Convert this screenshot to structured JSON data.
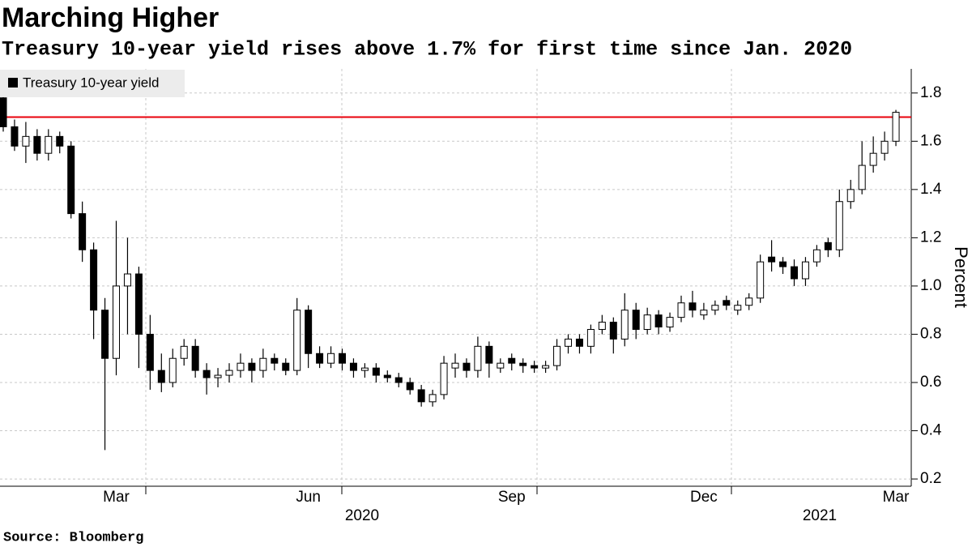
{
  "chart_data": {
    "type": "candlestick",
    "title": "Marching Higher",
    "subtitle": "Treasury 10-year yield rises above 1.7% for first time since Jan. 2020",
    "source": "Source: Bloomberg",
    "y_axis_label": "Percent",
    "years": [
      "2020",
      "2021"
    ],
    "categories": [
      null,
      null,
      null,
      null,
      null,
      null,
      null,
      null,
      null,
      null,
      "Mar",
      null,
      null,
      null,
      null,
      null,
      null,
      null,
      null,
      null,
      null,
      null,
      null,
      null,
      null,
      null,
      null,
      "Jun",
      null,
      null,
      null,
      null,
      null,
      null,
      null,
      null,
      null,
      null,
      null,
      null,
      null,
      null,
      null,
      null,
      null,
      "Sep",
      null,
      null,
      null,
      null,
      null,
      null,
      null,
      null,
      null,
      null,
      null,
      null,
      null,
      null,
      null,
      null,
      "Dec",
      null,
      null,
      null,
      null,
      null,
      null,
      null,
      null,
      null,
      null,
      null,
      null,
      null,
      null,
      null,
      null,
      "Mar"
    ],
    "series": [
      {
        "name": "Treasury 10-year yield",
        "color": "#000000",
        "open": [
          1.78,
          1.66,
          1.58,
          1.62,
          1.55,
          1.62,
          1.58,
          1.3,
          1.15,
          0.9,
          0.7,
          1.0,
          1.05,
          0.8,
          0.65,
          0.6,
          0.7,
          0.75,
          0.65,
          0.62,
          0.63,
          0.65,
          0.68,
          0.65,
          0.7,
          0.68,
          0.65,
          0.9,
          0.72,
          0.68,
          0.72,
          0.68,
          0.65,
          0.66,
          0.63,
          0.62,
          0.6,
          0.57,
          0.52,
          0.55,
          0.66,
          0.68,
          0.65,
          0.75,
          0.66,
          0.7,
          0.68,
          0.67,
          0.66,
          0.67,
          0.75,
          0.78,
          0.75,
          0.82,
          0.85,
          0.78,
          0.9,
          0.82,
          0.88,
          0.83,
          0.87,
          0.93,
          0.88,
          0.9,
          0.94,
          0.9,
          0.92,
          0.95,
          1.12,
          1.1,
          1.08,
          1.03,
          1.1,
          1.18,
          1.15,
          1.35,
          1.4,
          1.5,
          1.55,
          1.6
        ],
        "high": [
          1.8,
          1.69,
          1.68,
          1.65,
          1.65,
          1.64,
          1.6,
          1.35,
          1.18,
          0.95,
          1.27,
          1.2,
          1.08,
          0.88,
          0.72,
          0.74,
          0.78,
          0.78,
          0.68,
          0.66,
          0.68,
          0.72,
          0.7,
          0.74,
          0.72,
          0.7,
          0.95,
          0.92,
          0.75,
          0.75,
          0.74,
          0.7,
          0.68,
          0.68,
          0.65,
          0.64,
          0.62,
          0.59,
          0.57,
          0.71,
          0.72,
          0.7,
          0.79,
          0.77,
          0.7,
          0.72,
          0.7,
          0.69,
          0.69,
          0.78,
          0.8,
          0.8,
          0.84,
          0.88,
          0.87,
          0.97,
          0.93,
          0.91,
          0.9,
          0.89,
          0.96,
          0.98,
          0.93,
          0.94,
          0.96,
          0.94,
          0.97,
          1.13,
          1.19,
          1.12,
          1.11,
          1.12,
          1.17,
          1.2,
          1.4,
          1.44,
          1.6,
          1.62,
          1.64,
          1.73
        ],
        "low": [
          1.64,
          1.56,
          1.51,
          1.52,
          1.52,
          1.55,
          1.28,
          1.1,
          0.78,
          0.32,
          0.63,
          0.8,
          0.66,
          0.57,
          0.56,
          0.58,
          0.67,
          0.62,
          0.55,
          0.58,
          0.6,
          0.62,
          0.6,
          0.62,
          0.65,
          0.63,
          0.63,
          0.66,
          0.66,
          0.66,
          0.65,
          0.62,
          0.62,
          0.6,
          0.6,
          0.58,
          0.55,
          0.5,
          0.5,
          0.53,
          0.62,
          0.62,
          0.62,
          0.62,
          0.64,
          0.65,
          0.64,
          0.64,
          0.64,
          0.65,
          0.72,
          0.72,
          0.72,
          0.8,
          0.72,
          0.75,
          0.78,
          0.8,
          0.8,
          0.81,
          0.85,
          0.87,
          0.86,
          0.88,
          0.9,
          0.88,
          0.9,
          0.93,
          1.06,
          1.05,
          1.0,
          1.0,
          1.08,
          1.12,
          1.12,
          1.32,
          1.38,
          1.47,
          1.52,
          1.58
        ],
        "close": [
          1.66,
          1.58,
          1.62,
          1.55,
          1.62,
          1.58,
          1.3,
          1.15,
          0.9,
          0.7,
          1.0,
          1.05,
          0.8,
          0.65,
          0.6,
          0.7,
          0.75,
          0.65,
          0.62,
          0.63,
          0.65,
          0.68,
          0.65,
          0.7,
          0.68,
          0.65,
          0.9,
          0.72,
          0.68,
          0.72,
          0.68,
          0.65,
          0.66,
          0.63,
          0.62,
          0.6,
          0.57,
          0.52,
          0.55,
          0.68,
          0.68,
          0.65,
          0.75,
          0.68,
          0.68,
          0.68,
          0.67,
          0.66,
          0.67,
          0.75,
          0.78,
          0.75,
          0.82,
          0.85,
          0.78,
          0.9,
          0.82,
          0.88,
          0.83,
          0.87,
          0.93,
          0.9,
          0.9,
          0.92,
          0.92,
          0.92,
          0.95,
          1.1,
          1.1,
          1.08,
          1.03,
          1.1,
          1.15,
          1.15,
          1.35,
          1.4,
          1.5,
          1.55,
          1.6,
          1.72
        ]
      }
    ],
    "reference_line": {
      "value": 1.7,
      "color": "#e8000b"
    },
    "ylim": [
      0.17,
      1.9
    ],
    "yticks": [
      0.2,
      0.4,
      0.6,
      0.8,
      {
        "value": 1,
        "label": "1.0"
      },
      1.2,
      1.4,
      1.6,
      1.8
    ],
    "grid": true,
    "legend": "top-left"
  }
}
